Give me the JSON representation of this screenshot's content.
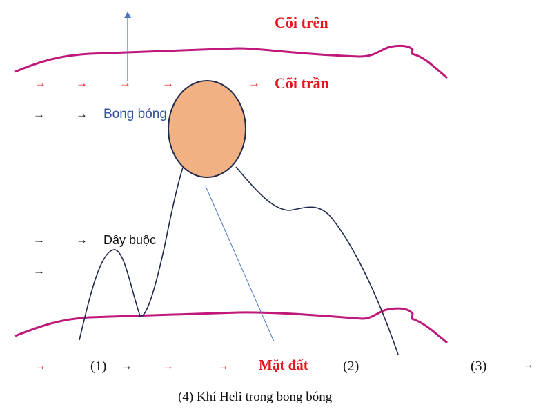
{
  "labels": {
    "upper_hull": "Cõi trên",
    "ceiling": "Cõi trần",
    "balloon": "Bong bóng",
    "tether": "Dây buộc",
    "ground": "Mặt đất",
    "n1": "(1)",
    "n2": "(2)",
    "n3": "(3)",
    "caption": "(4) Khí Heli trong bong bóng"
  },
  "arrow_glyph": "→",
  "colors": {
    "boundary": "#c0177a",
    "string": "#1f2a4d",
    "balloon_fill": "#f2b183",
    "pointer": "#4a76c0",
    "label_red": "#e8121b",
    "label_blue": "#2f5496"
  }
}
